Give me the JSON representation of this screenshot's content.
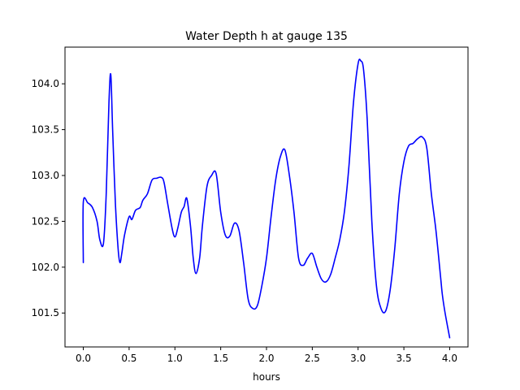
{
  "chart_data": {
    "type": "line",
    "title": "Water Depth h at gauge 135",
    "xlabel": "hours",
    "ylabel": "",
    "xlim": [
      -0.2,
      4.2
    ],
    "ylim": [
      101.13,
      104.4
    ],
    "xticks": [
      0.0,
      0.5,
      1.0,
      1.5,
      2.0,
      2.5,
      3.0,
      3.5,
      4.0
    ],
    "xtick_labels": [
      "0.0",
      "0.5",
      "1.0",
      "1.5",
      "2.0",
      "2.5",
      "3.0",
      "3.5",
      "4.0"
    ],
    "yticks": [
      101.5,
      102.0,
      102.5,
      103.0,
      103.5,
      104.0
    ],
    "ytick_labels": [
      "101.5",
      "102.0",
      "102.5",
      "103.0",
      "103.5",
      "104.0"
    ],
    "grid": false,
    "line_color": "#0000ff",
    "series": [
      {
        "x": [
          0.0,
          0.0,
          0.05,
          0.1,
          0.15,
          0.18,
          0.22,
          0.25,
          0.28,
          0.3,
          0.32,
          0.35,
          0.38,
          0.4,
          0.42,
          0.45,
          0.5,
          0.53,
          0.57,
          0.62,
          0.65,
          0.7,
          0.75,
          0.8,
          0.85,
          0.88,
          0.92,
          0.97,
          1.0,
          1.03,
          1.07,
          1.1,
          1.13,
          1.17,
          1.2,
          1.23,
          1.27,
          1.3,
          1.35,
          1.4,
          1.45,
          1.5,
          1.55,
          1.6,
          1.65,
          1.7,
          1.75,
          1.8,
          1.85,
          1.9,
          1.95,
          2.0,
          2.05,
          2.1,
          2.15,
          2.2,
          2.25,
          2.3,
          2.35,
          2.4,
          2.45,
          2.5,
          2.55,
          2.6,
          2.65,
          2.7,
          2.75,
          2.8,
          2.85,
          2.9,
          2.95,
          3.0,
          3.03,
          3.06,
          3.1,
          3.15,
          3.2,
          3.25,
          3.3,
          3.35,
          3.4,
          3.45,
          3.5,
          3.55,
          3.6,
          3.65,
          3.7,
          3.75,
          3.8,
          3.85,
          3.9,
          3.92,
          3.95,
          4.0
        ],
        "y": [
          102.05,
          102.71,
          102.7,
          102.65,
          102.5,
          102.3,
          102.26,
          102.8,
          103.8,
          104.1,
          103.5,
          102.7,
          102.2,
          102.05,
          102.15,
          102.35,
          102.55,
          102.52,
          102.62,
          102.65,
          102.73,
          102.8,
          102.95,
          102.97,
          102.98,
          102.93,
          102.7,
          102.42,
          102.33,
          102.42,
          102.6,
          102.66,
          102.75,
          102.45,
          102.1,
          101.93,
          102.1,
          102.45,
          102.88,
          103.0,
          103.02,
          102.6,
          102.35,
          102.34,
          102.48,
          102.4,
          102.05,
          101.65,
          101.55,
          101.58,
          101.8,
          102.1,
          102.55,
          102.95,
          103.2,
          103.28,
          103.0,
          102.6,
          102.1,
          102.02,
          102.1,
          102.15,
          102.0,
          101.87,
          101.84,
          101.92,
          102.1,
          102.3,
          102.6,
          103.1,
          103.8,
          104.22,
          104.25,
          104.15,
          103.6,
          102.5,
          101.8,
          101.55,
          101.52,
          101.75,
          102.2,
          102.8,
          103.15,
          103.32,
          103.35,
          103.4,
          103.42,
          103.3,
          102.8,
          102.4,
          101.9,
          101.7,
          101.5,
          101.23
        ]
      }
    ]
  }
}
